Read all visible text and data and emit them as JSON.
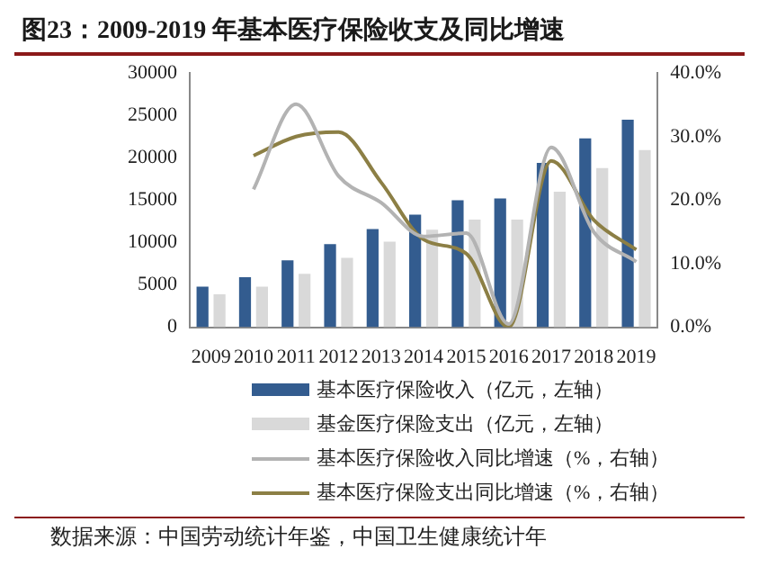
{
  "chart_data": {
    "type": "bar",
    "title": "图23：2009-2019 年基本医疗保险收支及同比增速",
    "categories": [
      "2009",
      "2010",
      "2011",
      "2012",
      "2013",
      "2014",
      "2015",
      "2016",
      "2017",
      "2018",
      "2019"
    ],
    "series": [
      {
        "name": "基本医疗保险收入（亿元，左轴）",
        "color": "#335c8f",
        "values": [
          4800,
          5900,
          7900,
          9800,
          11600,
          13300,
          15000,
          15200,
          19400,
          22300,
          24500
        ]
      },
      {
        "name": "基金医疗保险支出（亿元，左轴）",
        "color": "#d9d9d9",
        "values": [
          3900,
          4800,
          6300,
          8200,
          10100,
          11500,
          12700,
          12700,
          16000,
          18800,
          20900
        ]
      },
      {
        "name": "基本医疗保险收入同比增速（%，右轴）",
        "type": "line",
        "axis": "y2",
        "color": "#b3b3b3",
        "values": [
          null,
          21.7,
          35.1,
          23.8,
          19.6,
          14.3,
          14.8,
          0.5,
          28.3,
          15.0,
          10.3
        ]
      },
      {
        "name": "基本医疗保险支出同比增速（%，右轴）",
        "type": "line",
        "axis": "y2",
        "color": "#8c7f45",
        "values": [
          null,
          27.0,
          30.0,
          30.7,
          22.8,
          13.8,
          11.6,
          0.0,
          26.2,
          16.9,
          12.2
        ]
      }
    ],
    "ylim": [
      0,
      30000
    ],
    "yticks": [
      0,
      5000,
      10000,
      15000,
      20000,
      25000,
      30000
    ],
    "y2lim": [
      0,
      40
    ],
    "y2ticks": [
      {
        "value": 0,
        "label": "0.0%"
      },
      {
        "value": 10,
        "label": "10.0%"
      },
      {
        "value": 20,
        "label": "20.0%"
      },
      {
        "value": 30,
        "label": "30.0%"
      },
      {
        "value": 40,
        "label": "40.0%"
      }
    ],
    "legend": "bottom",
    "annotations": [
      "数据来源：中国劳动统计年鉴，中国卫生健康统计年"
    ]
  }
}
